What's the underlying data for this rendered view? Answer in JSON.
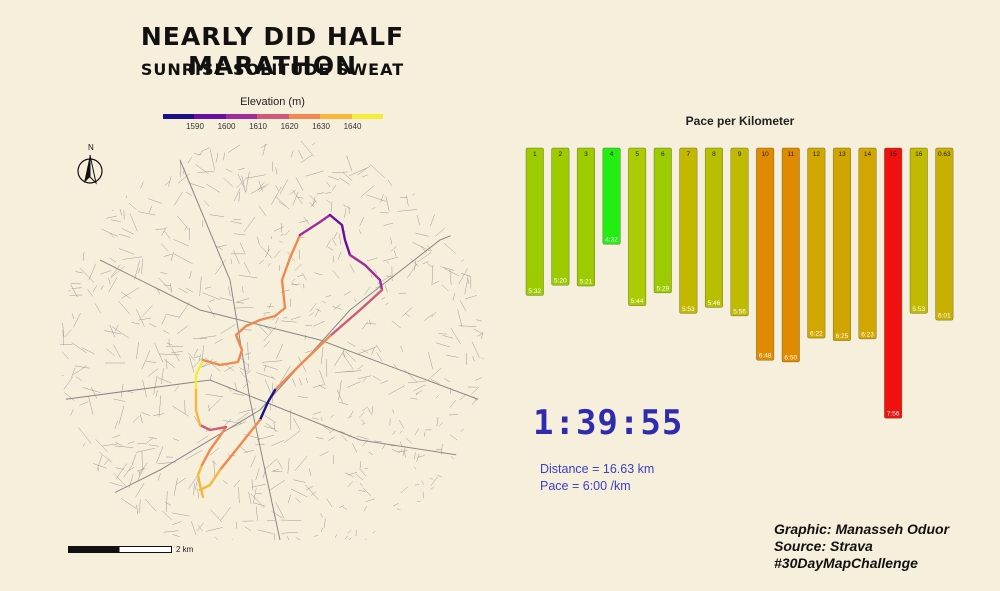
{
  "title": "NEARLY DID HALF MARATHON",
  "subtitle": "SUNRISE SOLITUDE SWEAT",
  "legend": {
    "title": "Elevation (m)",
    "colors": [
      "#1d1084",
      "#6a0fa0",
      "#a12d9a",
      "#cf5a78",
      "#ee8a4f",
      "#f8b63c",
      "#f4ec3a"
    ],
    "ticks": [
      "1590",
      "1600",
      "1610",
      "1620",
      "1630",
      "1640"
    ]
  },
  "north_label": "N",
  "scale_label": "2 km",
  "chart_data": {
    "type": "bar",
    "title": "Pace per Kilometer",
    "categories": [
      "1",
      "2",
      "3",
      "4",
      "5",
      "6",
      "7",
      "8",
      "9",
      "10",
      "11",
      "12",
      "13",
      "14",
      "15",
      "16",
      "0.63"
    ],
    "values": [
      "5:32",
      "5:20",
      "5:21",
      "4:32",
      "5:44",
      "5:29",
      "5:53",
      "5:46",
      "5:56",
      "6:48",
      "6:50",
      "6:22",
      "6:25",
      "6:23",
      "7:56",
      "5:53",
      "6:01"
    ],
    "seconds": [
      332,
      320,
      321,
      272,
      344,
      329,
      353,
      346,
      356,
      408,
      410,
      382,
      385,
      383,
      476,
      353,
      361
    ],
    "colors": [
      "#9ccc00",
      "#9ccc00",
      "#9ccc00",
      "#22ee11",
      "#aacc00",
      "#9ccc00",
      "#c2b800",
      "#b7c000",
      "#c0bb00",
      "#e08a00",
      "#e08a00",
      "#d0a800",
      "#d0a500",
      "#d2a600",
      "#f01010",
      "#c0bb00",
      "#c8b000"
    ]
  },
  "summary": {
    "total_time": "1:39:55",
    "distance": "Distance = 16.63 km",
    "pace": "Pace = 6:00 /km"
  },
  "credits": {
    "graphic": "Graphic: Manasseh Oduor",
    "source": "Source: Strava",
    "hashtag": "#30DayMapChallenge"
  }
}
